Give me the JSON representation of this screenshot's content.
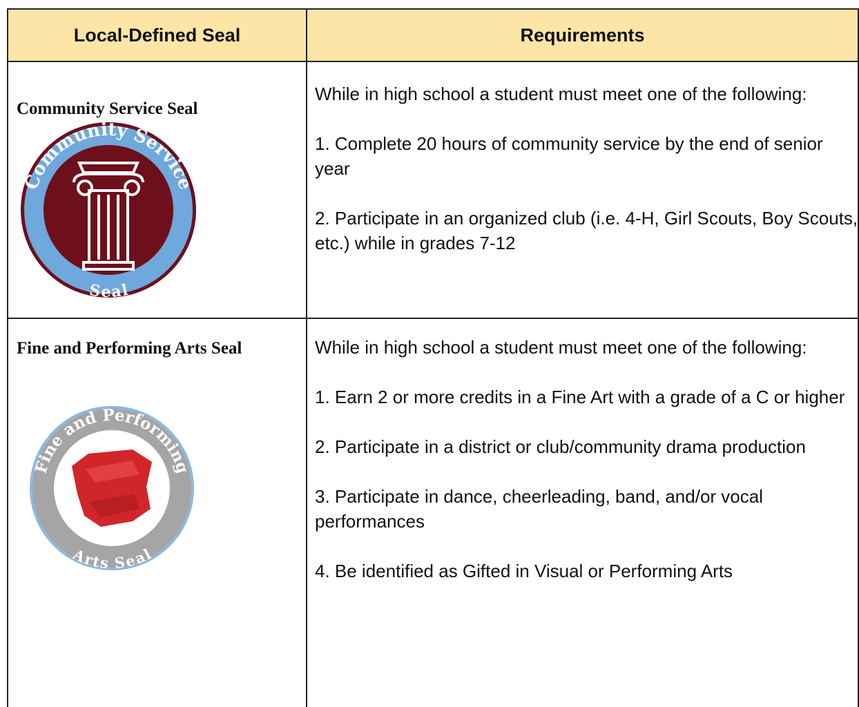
{
  "table": {
    "header": [
      "Local-Defined Seal",
      "Requirements"
    ],
    "rows": [
      {
        "seal": "Community Service Seal",
        "badge": {
          "top": "Community Service",
          "bottom": "Seal"
        },
        "intro": "While in high school a student must meet one of the following:",
        "items": [
          "1. Complete 20 hours of community service by the end of senior year",
          "2. Participate in an organized club (i.e. 4-H, Girl Scouts, Boy Scouts, etc.) while in grades 7-12"
        ]
      },
      {
        "seal": "Fine and Performing Arts Seal",
        "badge": {
          "top": "Fine and Performing",
          "bottom": "Arts Seal"
        },
        "intro": "While in high school a student must meet one of the following:",
        "items": [
          "1. Earn 2 or more credits in a Fine Art with a grade of a C or higher",
          "2. Participate in a district or club/community drama production",
          "3. Participate in dance, cheerleading, band, and/or vocal performances",
          "4. Be identified as Gifted in Visual or Performing Arts"
        ]
      }
    ]
  }
}
